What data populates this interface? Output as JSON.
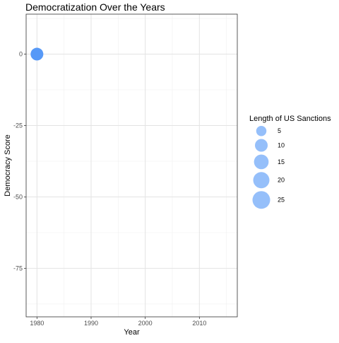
{
  "chart_data": {
    "type": "scatter",
    "title": "Democratization Over the Years",
    "xlabel": "Year",
    "ylabel": "Democracy Score",
    "xlim": [
      1978,
      2017
    ],
    "ylim": [
      -92,
      14
    ],
    "x_ticks": [
      1980,
      1990,
      2000,
      2010
    ],
    "y_ticks": [
      0,
      -25,
      -50,
      -75
    ],
    "grid": true,
    "points": [
      {
        "x": 1980,
        "y": 0,
        "size": 10
      }
    ],
    "point_color": "#4e94f7",
    "legend": {
      "title": "Length of US Sanctions",
      "position": "right",
      "entries": [
        {
          "label": "5",
          "size": 5
        },
        {
          "label": "10",
          "size": 10
        },
        {
          "label": "15",
          "size": 15
        },
        {
          "label": "20",
          "size": 20
        },
        {
          "label": "25",
          "size": 25
        }
      ]
    }
  }
}
